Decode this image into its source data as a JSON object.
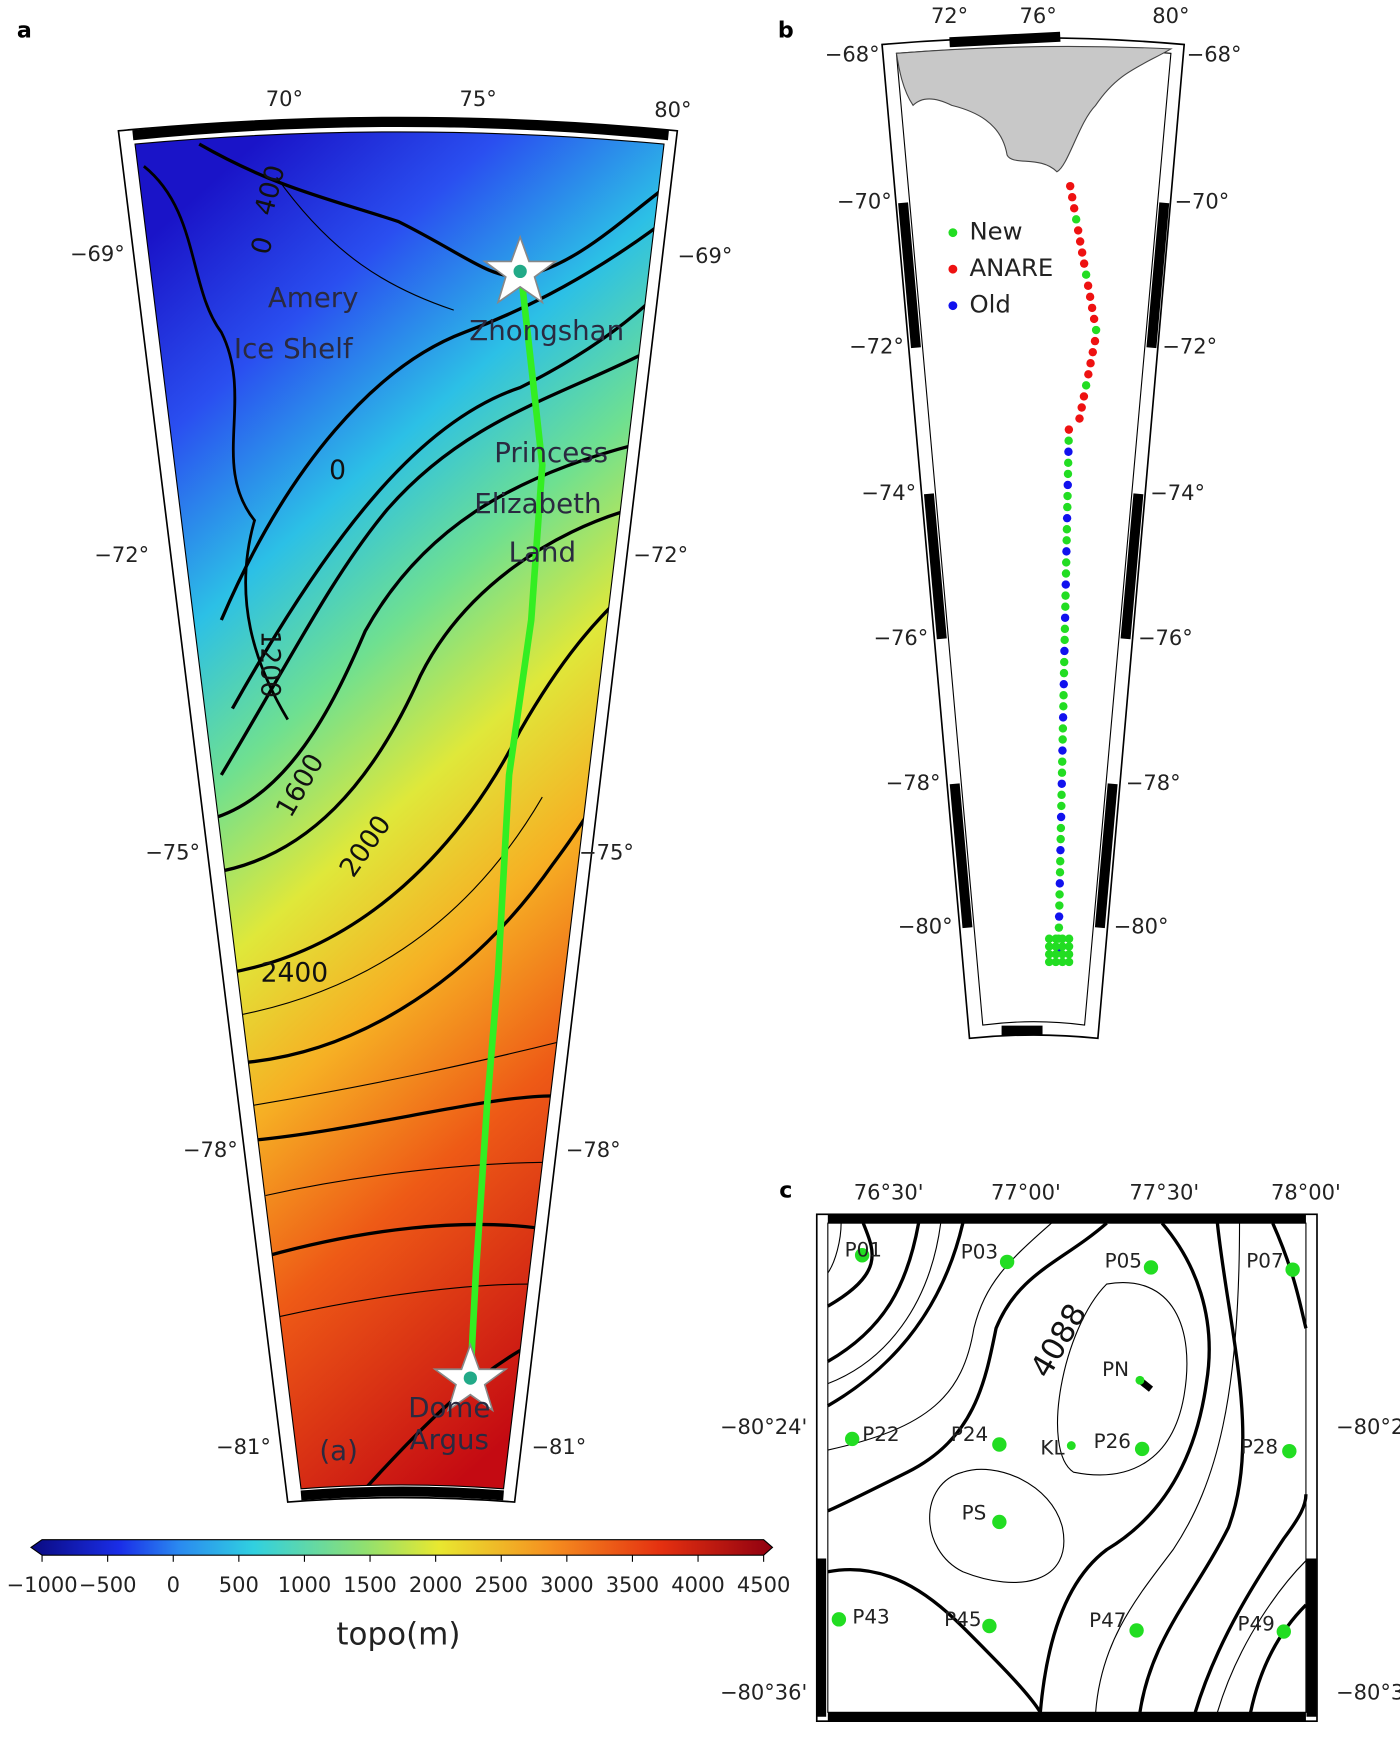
{
  "panels": {
    "a": {
      "label": "a",
      "lon_labels": [
        "70°",
        "75°",
        "80°"
      ],
      "lat_labels": [
        "−69°",
        "−72°",
        "−75°",
        "−78°",
        "−81°"
      ],
      "places": [
        "Amery",
        "Ice Shelf",
        "Zhongshan",
        "Princess",
        "Elizabeth",
        "Land",
        "Dome",
        "Argus",
        "(a)"
      ],
      "contour_labels": [
        "400",
        "0",
        "0",
        "1200",
        "1600",
        "2000",
        "2400"
      ]
    },
    "b": {
      "label": "b",
      "lon_labels": [
        "72°",
        "76°",
        "80°"
      ],
      "lat_labels": [
        "−68°",
        "−70°",
        "−72°",
        "−74°",
        "−76°",
        "−78°",
        "−80°"
      ],
      "legend": [
        {
          "name": "New",
          "color": "#22dd22"
        },
        {
          "name": "ANARE",
          "color": "#ee1111"
        },
        {
          "name": "Old",
          "color": "#1111ee"
        }
      ]
    },
    "c": {
      "label": "c",
      "lon_labels": [
        "76°30'",
        "77°00'",
        "77°30'",
        "78°00'"
      ],
      "lat_labels_left": [
        "−80°24'",
        "−80°36'"
      ],
      "lat_labels_right": [
        "−80°2",
        "−80°3"
      ],
      "contour_label": "4088",
      "sites": [
        "P01",
        "P03",
        "P05",
        "P07",
        "PN",
        "P22",
        "P24",
        "KL",
        "P26",
        "P28",
        "PS",
        "P43",
        "P45",
        "P47",
        "P49"
      ]
    }
  },
  "colorbar": {
    "label": "topo(m)",
    "lim": [
      -1000,
      4500
    ],
    "ticks": [
      {
        "value": -1000,
        "label": "−1000"
      },
      {
        "value": -500,
        "label": "−500"
      },
      0,
      500,
      1000,
      1500,
      2000,
      2500,
      3000,
      3500,
      4000,
      4500
    ]
  }
}
